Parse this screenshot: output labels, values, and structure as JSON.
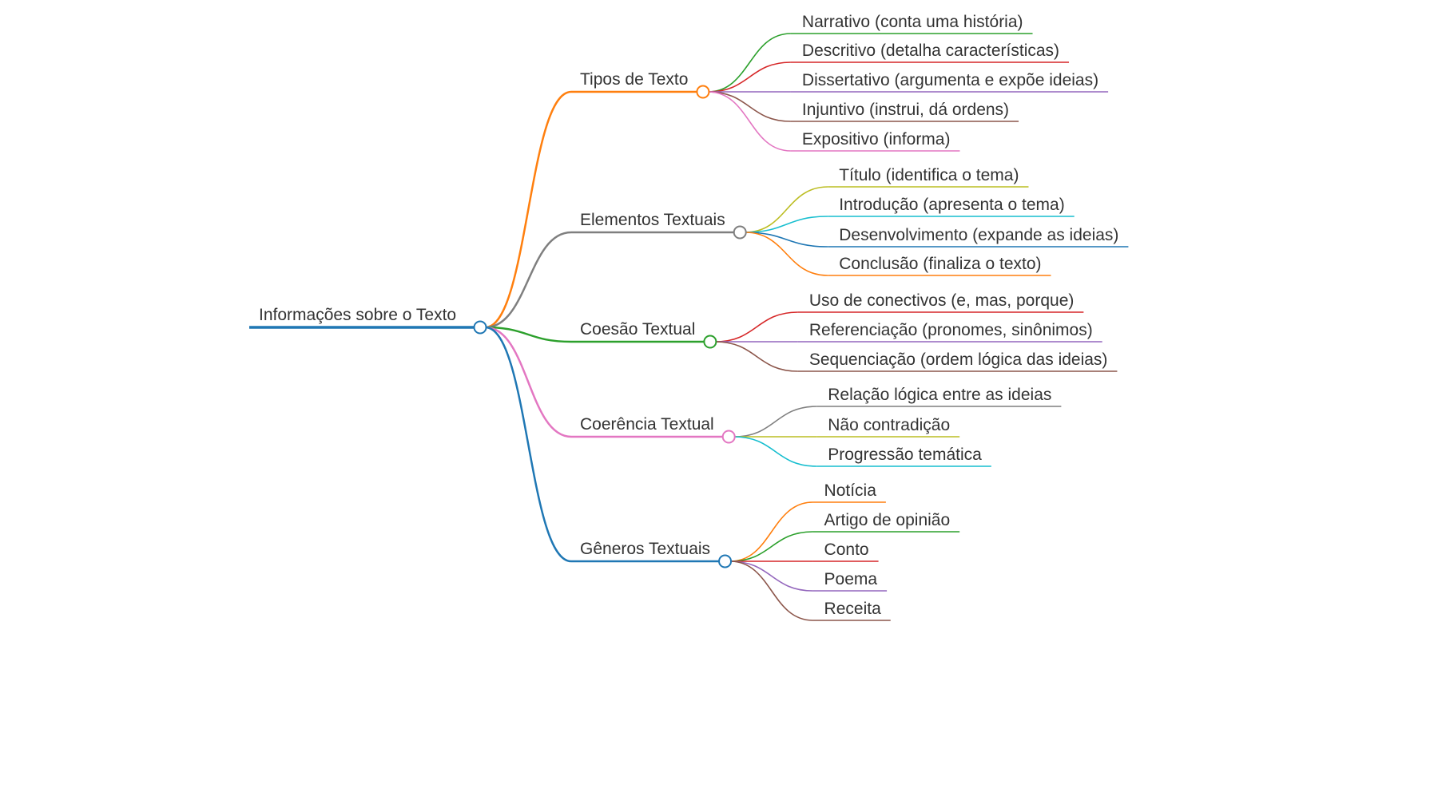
{
  "mindmap": {
    "root": {
      "label": "Informações sobre o Texto",
      "color": "#1f77b4",
      "children": [
        {
          "label": "Tipos de Texto",
          "color": "#ff7f0e",
          "children": [
            {
              "label": "Narrativo (conta uma história)",
              "color": "#2ca02c"
            },
            {
              "label": "Descritivo (detalha características)",
              "color": "#d62728"
            },
            {
              "label": "Dissertativo (argumenta e expõe ideias)",
              "color": "#9467bd"
            },
            {
              "label": "Injuntivo (instrui, dá ordens)",
              "color": "#8c564b"
            },
            {
              "label": "Expositivo (informa)",
              "color": "#e377c2"
            }
          ]
        },
        {
          "label": "Elementos Textuais",
          "color": "#7f7f7f",
          "children": [
            {
              "label": "Título (identifica o tema)",
              "color": "#bcbd22"
            },
            {
              "label": "Introdução (apresenta o tema)",
              "color": "#17becf"
            },
            {
              "label": "Desenvolvimento (expande as ideias)",
              "color": "#1f77b4"
            },
            {
              "label": "Conclusão (finaliza o texto)",
              "color": "#ff7f0e"
            }
          ]
        },
        {
          "label": "Coesão Textual",
          "color": "#2ca02c",
          "children": [
            {
              "label": "Uso de conectivos (e, mas, porque)",
              "color": "#d62728"
            },
            {
              "label": "Referenciação (pronomes, sinônimos)",
              "color": "#9467bd"
            },
            {
              "label": "Sequenciação (ordem lógica das ideias)",
              "color": "#8c564b"
            }
          ]
        },
        {
          "label": "Coerência Textual",
          "color": "#e377c2",
          "children": [
            {
              "label": "Relação lógica entre as ideias",
              "color": "#7f7f7f"
            },
            {
              "label": "Não contradição",
              "color": "#bcbd22"
            },
            {
              "label": "Progressão temática",
              "color": "#17becf"
            }
          ]
        },
        {
          "label": "Gêneros Textuais",
          "color": "#1f77b4",
          "children": [
            {
              "label": "Notícia",
              "color": "#ff7f0e"
            },
            {
              "label": "Artigo de opinião",
              "color": "#2ca02c"
            },
            {
              "label": "Conto",
              "color": "#d62728"
            },
            {
              "label": "Poema",
              "color": "#9467bd"
            },
            {
              "label": "Receita",
              "color": "#8c564b"
            }
          ]
        }
      ]
    }
  }
}
